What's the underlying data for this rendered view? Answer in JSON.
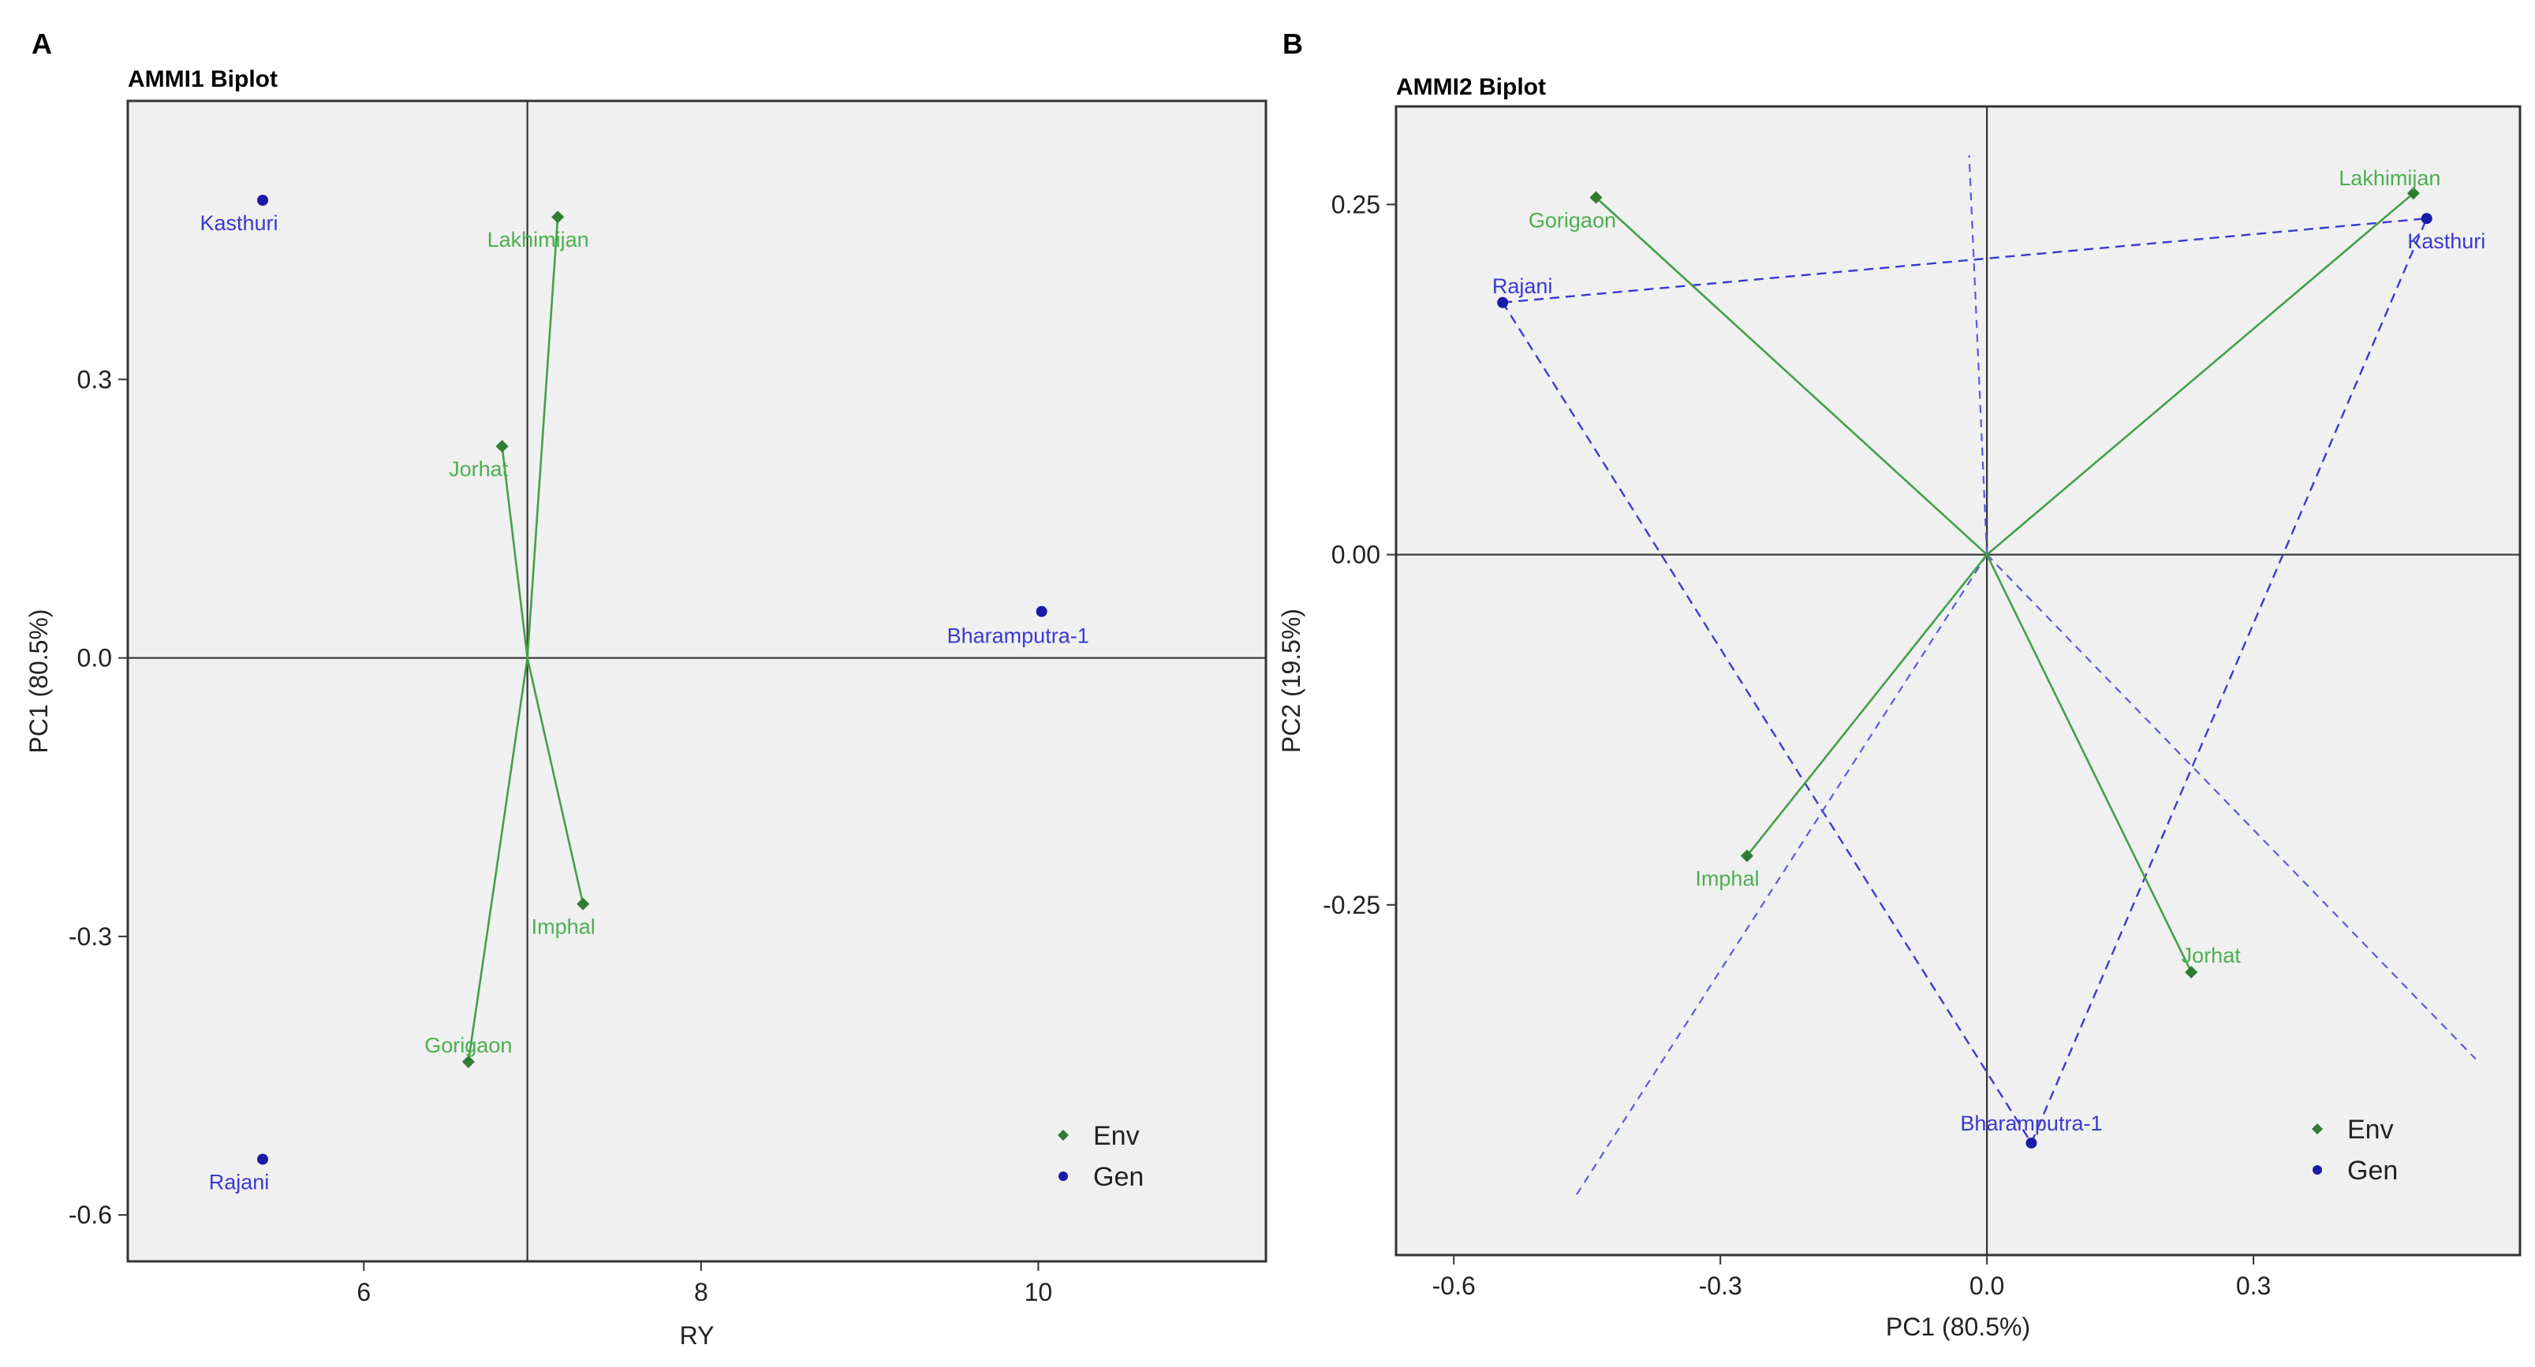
{
  "colors": {
    "env": "#2e7d32",
    "env_label": "#4caf50",
    "gen": "#1a1aa8",
    "gen_label": "#3a3ad0",
    "panel_bg": "#f0f0f0"
  },
  "chart_data": [
    {
      "panel": "A",
      "type": "scatter",
      "title": "AMMI1 Biplot",
      "xlabel": "RY",
      "ylabel": "PC1 (80.5%)",
      "xlim": [
        4.6,
        11.35
      ],
      "ylim": [
        -0.65,
        0.6
      ],
      "xticks": [
        {
          "v": 6,
          "label": "6"
        },
        {
          "v": 8,
          "label": "8"
        },
        {
          "v": 10,
          "label": "10"
        }
      ],
      "yticks": [
        {
          "v": -0.6,
          "label": "-0.6"
        },
        {
          "v": -0.3,
          "label": "-0.3"
        },
        {
          "v": 0,
          "label": "0.0"
        },
        {
          "v": 0.3,
          "label": "0.3"
        }
      ],
      "ref_lines": {
        "x": 6.97,
        "y": 0
      },
      "origin": [
        6.97,
        0
      ],
      "legend": {
        "position": "bottom-right",
        "items": [
          {
            "label": "Env",
            "kind": "env"
          },
          {
            "label": "Gen",
            "kind": "gen"
          }
        ]
      },
      "series": [
        {
          "name": "Env",
          "points": [
            {
              "label": "Lakhimijan",
              "x": 7.15,
              "y": 0.475
            },
            {
              "label": "Jorhat",
              "x": 6.82,
              "y": 0.228
            },
            {
              "label": "Imphal",
              "x": 7.3,
              "y": -0.265
            },
            {
              "label": "Gorigaon",
              "x": 6.62,
              "y": -0.435
            }
          ]
        },
        {
          "name": "Gen",
          "points": [
            {
              "label": "Kasthuri",
              "x": 5.4,
              "y": 0.493
            },
            {
              "label": "Bharamputra-1",
              "x": 10.02,
              "y": 0.05
            },
            {
              "label": "Rajani",
              "x": 5.4,
              "y": -0.54
            }
          ]
        }
      ]
    },
    {
      "panel": "B",
      "type": "scatter",
      "title": "AMMI2 Biplot",
      "xlabel": "PC1 (80.5%)",
      "ylabel": "PC2 (19.5%)",
      "xlim": [
        -0.665,
        0.6
      ],
      "ylim": [
        -0.5,
        0.32
      ],
      "xticks": [
        {
          "v": -0.6,
          "label": "-0.6"
        },
        {
          "v": -0.3,
          "label": "-0.3"
        },
        {
          "v": 0,
          "label": "0.0"
        },
        {
          "v": 0.3,
          "label": "0.3"
        }
      ],
      "yticks": [
        {
          "v": -0.25,
          "label": "-0.25"
        },
        {
          "v": 0,
          "label": "0.00"
        },
        {
          "v": 0.25,
          "label": "0.25"
        }
      ],
      "ref_lines": {
        "x": 0,
        "y": 0
      },
      "origin": [
        0,
        0
      ],
      "legend": {
        "position": "bottom-right",
        "items": [
          {
            "label": "Env",
            "kind": "env"
          },
          {
            "label": "Gen",
            "kind": "gen"
          }
        ]
      },
      "polygon": [
        [
          -0.545,
          0.18
        ],
        [
          0.495,
          0.24
        ],
        [
          0.05,
          -0.42
        ]
      ],
      "sector_rays": [
        [
          -0.02,
          0.285
        ],
        [
          0.55,
          -0.36
        ],
        [
          -0.465,
          -0.46
        ]
      ],
      "series": [
        {
          "name": "Env",
          "points": [
            {
              "label": "Gorigaon",
              "x": -0.44,
              "y": 0.255
            },
            {
              "label": "Lakhimijan",
              "x": 0.48,
              "y": 0.258
            },
            {
              "label": "Imphal",
              "x": -0.27,
              "y": -0.215
            },
            {
              "label": "Jorhat",
              "x": 0.23,
              "y": -0.298
            }
          ]
        },
        {
          "name": "Gen",
          "points": [
            {
              "label": "Rajani",
              "x": -0.545,
              "y": 0.18
            },
            {
              "label": "Kasthuri",
              "x": 0.495,
              "y": 0.24
            },
            {
              "label": "Bharamputra-1",
              "x": 0.05,
              "y": -0.42
            }
          ]
        }
      ]
    }
  ]
}
